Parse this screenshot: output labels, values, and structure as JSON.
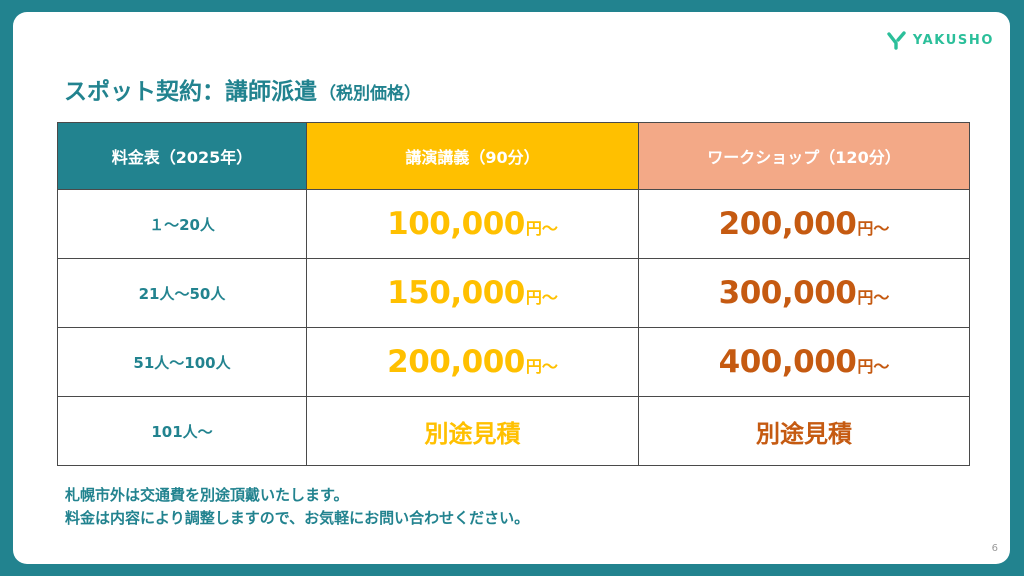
{
  "logo": {
    "text": "YAKUSHO",
    "color": "#2bbf9a"
  },
  "title": {
    "main": "スポット契約：講師派遣",
    "sub": "（税別価格）"
  },
  "table": {
    "headers": {
      "fee": "料金表（2025年）",
      "lecture": "講演講義（90分）",
      "workshop": "ワークショップ（120分）"
    },
    "rows": [
      {
        "label": "１～20人",
        "lecture_amount": "100,000",
        "lecture_unit": "円～",
        "workshop_amount": "200,000",
        "workshop_unit": "円～"
      },
      {
        "label": "21人～50人",
        "lecture_amount": "150,000",
        "lecture_unit": "円～",
        "workshop_amount": "300,000",
        "workshop_unit": "円～"
      },
      {
        "label": "51人～100人",
        "lecture_amount": "200,000",
        "lecture_unit": "円～",
        "workshop_amount": "400,000",
        "workshop_unit": "円～"
      },
      {
        "label": "101人～",
        "lecture_estimate": "別途見積",
        "workshop_estimate": "別途見積"
      }
    ]
  },
  "notes": [
    "札幌市外は交通費を別途頂戴いたします。",
    "料金は内容により調整しますので、お気軽にお問い合わせください。"
  ],
  "page_number": "6",
  "colors": {
    "teal": "#22838f",
    "lecture": "#ffc000",
    "workshop_header": "#f3a987",
    "workshop_text": "#c55a11"
  }
}
